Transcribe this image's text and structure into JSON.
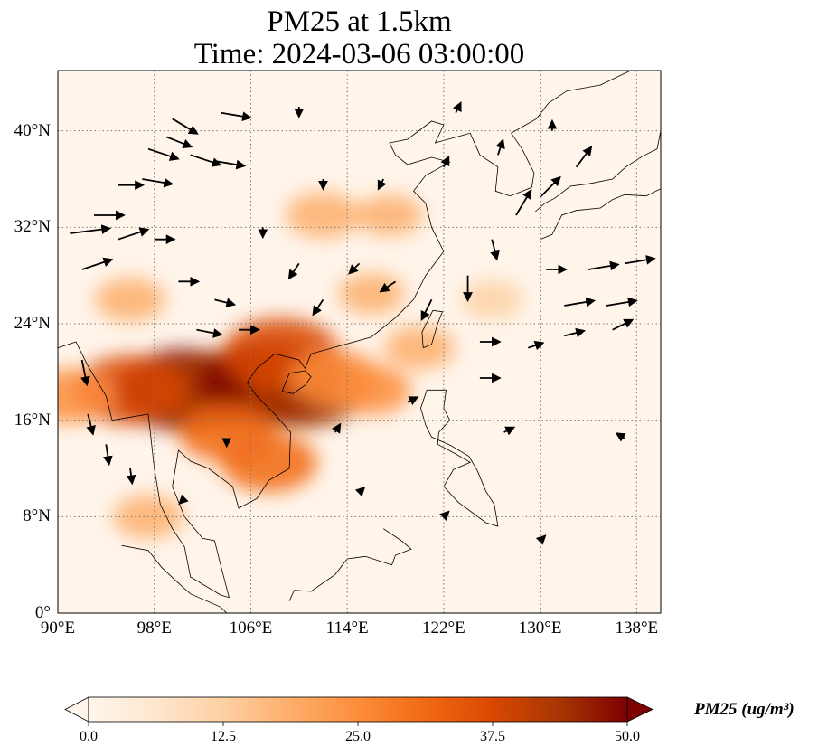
{
  "title": {
    "line1": "PM25 at 1.5km",
    "line2": "Time: 2024-03-06 03:00:00"
  },
  "map": {
    "lon_range": [
      90,
      140
    ],
    "lat_range": [
      0,
      45
    ],
    "lat_ticks": [
      {
        "value": 0,
        "label": "0°"
      },
      {
        "value": 8,
        "label": "8°N"
      },
      {
        "value": 16,
        "label": "16°N"
      },
      {
        "value": 24,
        "label": "24°N"
      },
      {
        "value": 32,
        "label": "32°N"
      },
      {
        "value": 40,
        "label": "40°N"
      }
    ],
    "lon_ticks": [
      {
        "value": 90,
        "label": "90°E"
      },
      {
        "value": 98,
        "label": "98°E"
      },
      {
        "value": 106,
        "label": "106°E"
      },
      {
        "value": 114,
        "label": "114°E"
      },
      {
        "value": 122,
        "label": "122°E"
      },
      {
        "value": 130,
        "label": "130°E"
      },
      {
        "value": 138,
        "label": "138°E"
      }
    ],
    "grid": "dotted",
    "hotspots": [
      {
        "lon": 100.5,
        "lat": 18.5,
        "level": 48
      },
      {
        "lon": 103.5,
        "lat": 18.5,
        "level": 44
      },
      {
        "lon": 107.5,
        "lat": 19.0,
        "level": 50
      },
      {
        "lon": 110.5,
        "lat": 18.5,
        "level": 42
      },
      {
        "lon": 108.5,
        "lat": 21.5,
        "level": 40
      },
      {
        "lon": 96.0,
        "lat": 18.5,
        "level": 38
      },
      {
        "lon": 104.0,
        "lat": 15.0,
        "level": 30
      },
      {
        "lon": 107.5,
        "lat": 12.5,
        "level": 30
      },
      {
        "lon": 113.0,
        "lat": 19.5,
        "level": 28
      },
      {
        "lon": 116.0,
        "lat": 18.5,
        "level": 22
      },
      {
        "lon": 120.0,
        "lat": 22.0,
        "level": 18
      },
      {
        "lon": 112.0,
        "lat": 33.0,
        "level": 20
      },
      {
        "lon": 117.5,
        "lat": 33.0,
        "level": 16
      },
      {
        "lon": 96.0,
        "lat": 26.0,
        "level": 18
      },
      {
        "lon": 91.0,
        "lat": 18.0,
        "level": 26
      },
      {
        "lon": 97.5,
        "lat": 8.0,
        "level": 18
      },
      {
        "lon": 126.0,
        "lat": 26.0,
        "level": 14
      },
      {
        "lon": 116.0,
        "lat": 26.5,
        "level": 16
      }
    ],
    "wind_vectors": [
      {
        "lon": 91.0,
        "lat": 31.5,
        "u": 4,
        "v": 0.5
      },
      {
        "lon": 93.0,
        "lat": 33.0,
        "u": 3,
        "v": 0
      },
      {
        "lon": 95.0,
        "lat": 35.5,
        "u": 2.5,
        "v": 0
      },
      {
        "lon": 97.0,
        "lat": 36.0,
        "u": 3,
        "v": -0.5
      },
      {
        "lon": 97.5,
        "lat": 38.5,
        "u": 3,
        "v": -1
      },
      {
        "lon": 99.0,
        "lat": 39.5,
        "u": 2.5,
        "v": -1
      },
      {
        "lon": 101.0,
        "lat": 38.0,
        "u": 3,
        "v": -1
      },
      {
        "lon": 103.0,
        "lat": 37.5,
        "u": 3,
        "v": -0.5
      },
      {
        "lon": 99.5,
        "lat": 41.0,
        "u": 2.5,
        "v": -1.5
      },
      {
        "lon": 103.5,
        "lat": 41.5,
        "u": 3,
        "v": -0.5
      },
      {
        "lon": 92.0,
        "lat": 28.5,
        "u": 3,
        "v": 1
      },
      {
        "lon": 95.0,
        "lat": 31.0,
        "u": 3,
        "v": 1
      },
      {
        "lon": 98.0,
        "lat": 31.0,
        "u": 2,
        "v": 0
      },
      {
        "lon": 100.0,
        "lat": 27.5,
        "u": 2,
        "v": 0
      },
      {
        "lon": 103.0,
        "lat": 26.0,
        "u": 2,
        "v": -0.5
      },
      {
        "lon": 101.5,
        "lat": 23.5,
        "u": 2.5,
        "v": -0.5
      },
      {
        "lon": 105.0,
        "lat": 23.5,
        "u": 2,
        "v": 0
      },
      {
        "lon": 92.0,
        "lat": 21.0,
        "u": 0.5,
        "v": -2.5
      },
      {
        "lon": 92.5,
        "lat": 16.5,
        "u": 0.5,
        "v": -2
      },
      {
        "lon": 110.0,
        "lat": 29.0,
        "u": -1,
        "v": -1.5
      },
      {
        "lon": 112.0,
        "lat": 26.0,
        "u": -1,
        "v": -1.5
      },
      {
        "lon": 115.0,
        "lat": 29.0,
        "u": -1,
        "v": -1
      },
      {
        "lon": 118.0,
        "lat": 27.5,
        "u": -1.5,
        "v": -1
      },
      {
        "lon": 121.0,
        "lat": 26.0,
        "u": -1,
        "v": -2
      },
      {
        "lon": 124.0,
        "lat": 28.0,
        "u": 0,
        "v": -2.5
      },
      {
        "lon": 126.0,
        "lat": 31.0,
        "u": 0.5,
        "v": -2
      },
      {
        "lon": 128.0,
        "lat": 33.0,
        "u": 1.5,
        "v": 2.5
      },
      {
        "lon": 130.0,
        "lat": 34.5,
        "u": 2,
        "v": 2
      },
      {
        "lon": 133.0,
        "lat": 37.0,
        "u": 1.5,
        "v": 2
      },
      {
        "lon": 130.5,
        "lat": 28.5,
        "u": 2,
        "v": 0
      },
      {
        "lon": 134.0,
        "lat": 28.5,
        "u": 3,
        "v": 0.5
      },
      {
        "lon": 137.0,
        "lat": 29.0,
        "u": 3,
        "v": 0.5
      },
      {
        "lon": 132.0,
        "lat": 25.5,
        "u": 3,
        "v": 0.5
      },
      {
        "lon": 135.5,
        "lat": 25.5,
        "u": 3,
        "v": 0.5
      },
      {
        "lon": 132.0,
        "lat": 23.0,
        "u": 2,
        "v": 0.5
      },
      {
        "lon": 136.0,
        "lat": 23.5,
        "u": 2,
        "v": 1
      },
      {
        "lon": 125.0,
        "lat": 22.5,
        "u": 2,
        "v": 0
      },
      {
        "lon": 129.0,
        "lat": 22.0,
        "u": 1.5,
        "v": 0.5
      },
      {
        "lon": 125.0,
        "lat": 19.5,
        "u": 2,
        "v": 0
      },
      {
        "lon": 107.0,
        "lat": 32.0,
        "u": 0,
        "v": -1
      },
      {
        "lon": 112.0,
        "lat": 36.0,
        "u": 0,
        "v": -1
      },
      {
        "lon": 117.0,
        "lat": 36.0,
        "u": -0.5,
        "v": -1
      },
      {
        "lon": 122.0,
        "lat": 37.0,
        "u": 0.5,
        "v": 1
      },
      {
        "lon": 126.5,
        "lat": 38.0,
        "u": 0.5,
        "v": 1.5
      },
      {
        "lon": 131.0,
        "lat": 40.0,
        "u": 0,
        "v": 1
      },
      {
        "lon": 110.0,
        "lat": 42.0,
        "u": 0,
        "v": -1
      },
      {
        "lon": 123.0,
        "lat": 41.5,
        "u": 0.5,
        "v": 1
      },
      {
        "lon": 104.0,
        "lat": 14.5,
        "u": 0,
        "v": -0.8
      },
      {
        "lon": 113.0,
        "lat": 15.0,
        "u": 0.5,
        "v": 0.8
      },
      {
        "lon": 119.0,
        "lat": 17.5,
        "u": 1,
        "v": 0.5
      },
      {
        "lon": 127.0,
        "lat": 15.0,
        "u": 1,
        "v": 0.5
      },
      {
        "lon": 137.0,
        "lat": 14.5,
        "u": -0.8,
        "v": 0.5
      },
      {
        "lon": 96.0,
        "lat": 12.0,
        "u": 0.2,
        "v": -1.5
      },
      {
        "lon": 94.0,
        "lat": 14.0,
        "u": 0.3,
        "v": -2
      },
      {
        "lon": 100.5,
        "lat": 9.5,
        "u": -0.5,
        "v": -0.5
      },
      {
        "lon": 115.0,
        "lat": 10.0,
        "u": 0.5,
        "v": 0.5
      },
      {
        "lon": 122.0,
        "lat": 8.0,
        "u": 0.5,
        "v": 0.5
      },
      {
        "lon": 130.0,
        "lat": 6.0,
        "u": 0.5,
        "v": 0.5
      }
    ]
  },
  "colorbar": {
    "min": 0.0,
    "max": 50.0,
    "tick_labels": [
      "0.0",
      "12.5",
      "25.0",
      "37.5",
      "50.0"
    ],
    "unit_label": "PM25 (ug/m³)",
    "colors": [
      "#fff5eb",
      "#fee6ce",
      "#fdd0a2",
      "#fdae6b",
      "#fd8d3c",
      "#f16913",
      "#d94801",
      "#a63603",
      "#7f0000"
    ]
  }
}
